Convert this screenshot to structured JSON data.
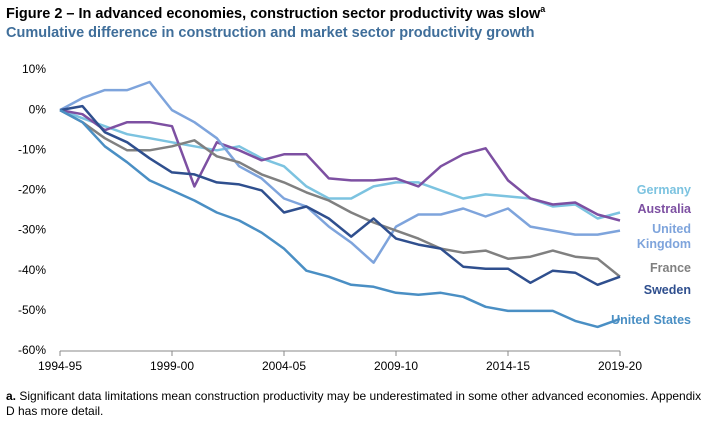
{
  "chart_data": {
    "type": "line",
    "title": "Figure 2 – In advanced economies, construction sector productivity was slow",
    "title_marker": "a",
    "subtitle": "Cumulative difference in construction and market sector productivity growth",
    "categories": [
      "1994-95",
      null,
      null,
      null,
      null,
      "1999-00",
      null,
      null,
      null,
      null,
      "2004-05",
      null,
      null,
      null,
      null,
      "2009-10",
      null,
      null,
      null,
      null,
      "2014-15",
      null,
      null,
      null,
      null,
      "2019-20"
    ],
    "ylim": [
      -60,
      10
    ],
    "yticks": [
      {
        "value": 10,
        "label": "10%"
      },
      {
        "value": 0,
        "label": "0%"
      },
      {
        "value": -10,
        "label": "-10%"
      },
      {
        "value": -20,
        "label": "-20%"
      },
      {
        "value": -30,
        "label": "-30%"
      },
      {
        "value": -40,
        "label": "-40%"
      },
      {
        "value": -50,
        "label": "-50%"
      },
      {
        "value": -60,
        "label": "-60%"
      }
    ],
    "grid": false,
    "legend": "right",
    "series": [
      {
        "name": "Germany",
        "color": "#7cc3e0",
        "values": [
          0,
          -2,
          -4,
          -6,
          -7,
          -8,
          -9,
          -10,
          -9,
          -12,
          -14,
          -19,
          -22,
          -22,
          -19,
          -18,
          -18,
          -20,
          -22,
          -21,
          -21.5,
          -22,
          -24,
          -23.5,
          -27,
          -25.5
        ]
      },
      {
        "name": "Australia",
        "color": "#7d50a2",
        "values": [
          0,
          -1,
          -5,
          -3,
          -3,
          -4,
          -19,
          -8,
          -10,
          -12.5,
          -11,
          -11,
          -17,
          -17.5,
          -17.5,
          -17,
          -19,
          -14,
          -11,
          -9.5,
          -17.5,
          -22,
          -23.5,
          -23,
          -26,
          -27.5
        ]
      },
      {
        "name": "United Kingdom",
        "color": "#7ea4dc",
        "values": [
          0,
          3,
          5,
          5,
          7,
          0,
          -3,
          -7,
          -14,
          -17,
          -22,
          -24,
          -29,
          -33,
          -38,
          -29,
          -26,
          -26,
          -24.5,
          -26.5,
          -24.5,
          -29,
          -30,
          -31,
          -31,
          -30
        ]
      },
      {
        "name": "France",
        "color": "#808080",
        "values": [
          0,
          -3,
          -7,
          -10,
          -10,
          -9,
          -7.5,
          -11.5,
          -13,
          -16,
          -18,
          -20.5,
          -22.5,
          -25.5,
          -28,
          -30,
          -32,
          -34.5,
          -35.5,
          -35,
          -37,
          -36.5,
          -35,
          -36.5,
          -37,
          -41.5
        ]
      },
      {
        "name": "Sweden",
        "color": "#2f4f8e",
        "values": [
          0,
          1,
          -5.5,
          -8,
          -12,
          -15.5,
          -16,
          -18,
          -18.5,
          -20,
          -25.5,
          -24,
          -27,
          -31.5,
          -27,
          -32,
          -33.5,
          -34.5,
          -39,
          -39.5,
          -39.5,
          -43,
          -40,
          -40.5,
          -43.5,
          -41.5
        ]
      },
      {
        "name": "United States",
        "color": "#4a8fc4",
        "values": [
          0,
          -3,
          -9,
          -13,
          -17.5,
          -20,
          -22.5,
          -25.5,
          -27.5,
          -30.5,
          -34.5,
          -40,
          -41.5,
          -43.5,
          -44,
          -45.5,
          -46,
          -45.5,
          -46.5,
          -49,
          -50,
          -50,
          -50,
          -52.5,
          -54,
          -52
        ]
      }
    ],
    "note_marker": "a.",
    "note": "Significant data limitations mean construction productivity may be underestimated in some other advanced economies. Appendix D has more detail."
  }
}
